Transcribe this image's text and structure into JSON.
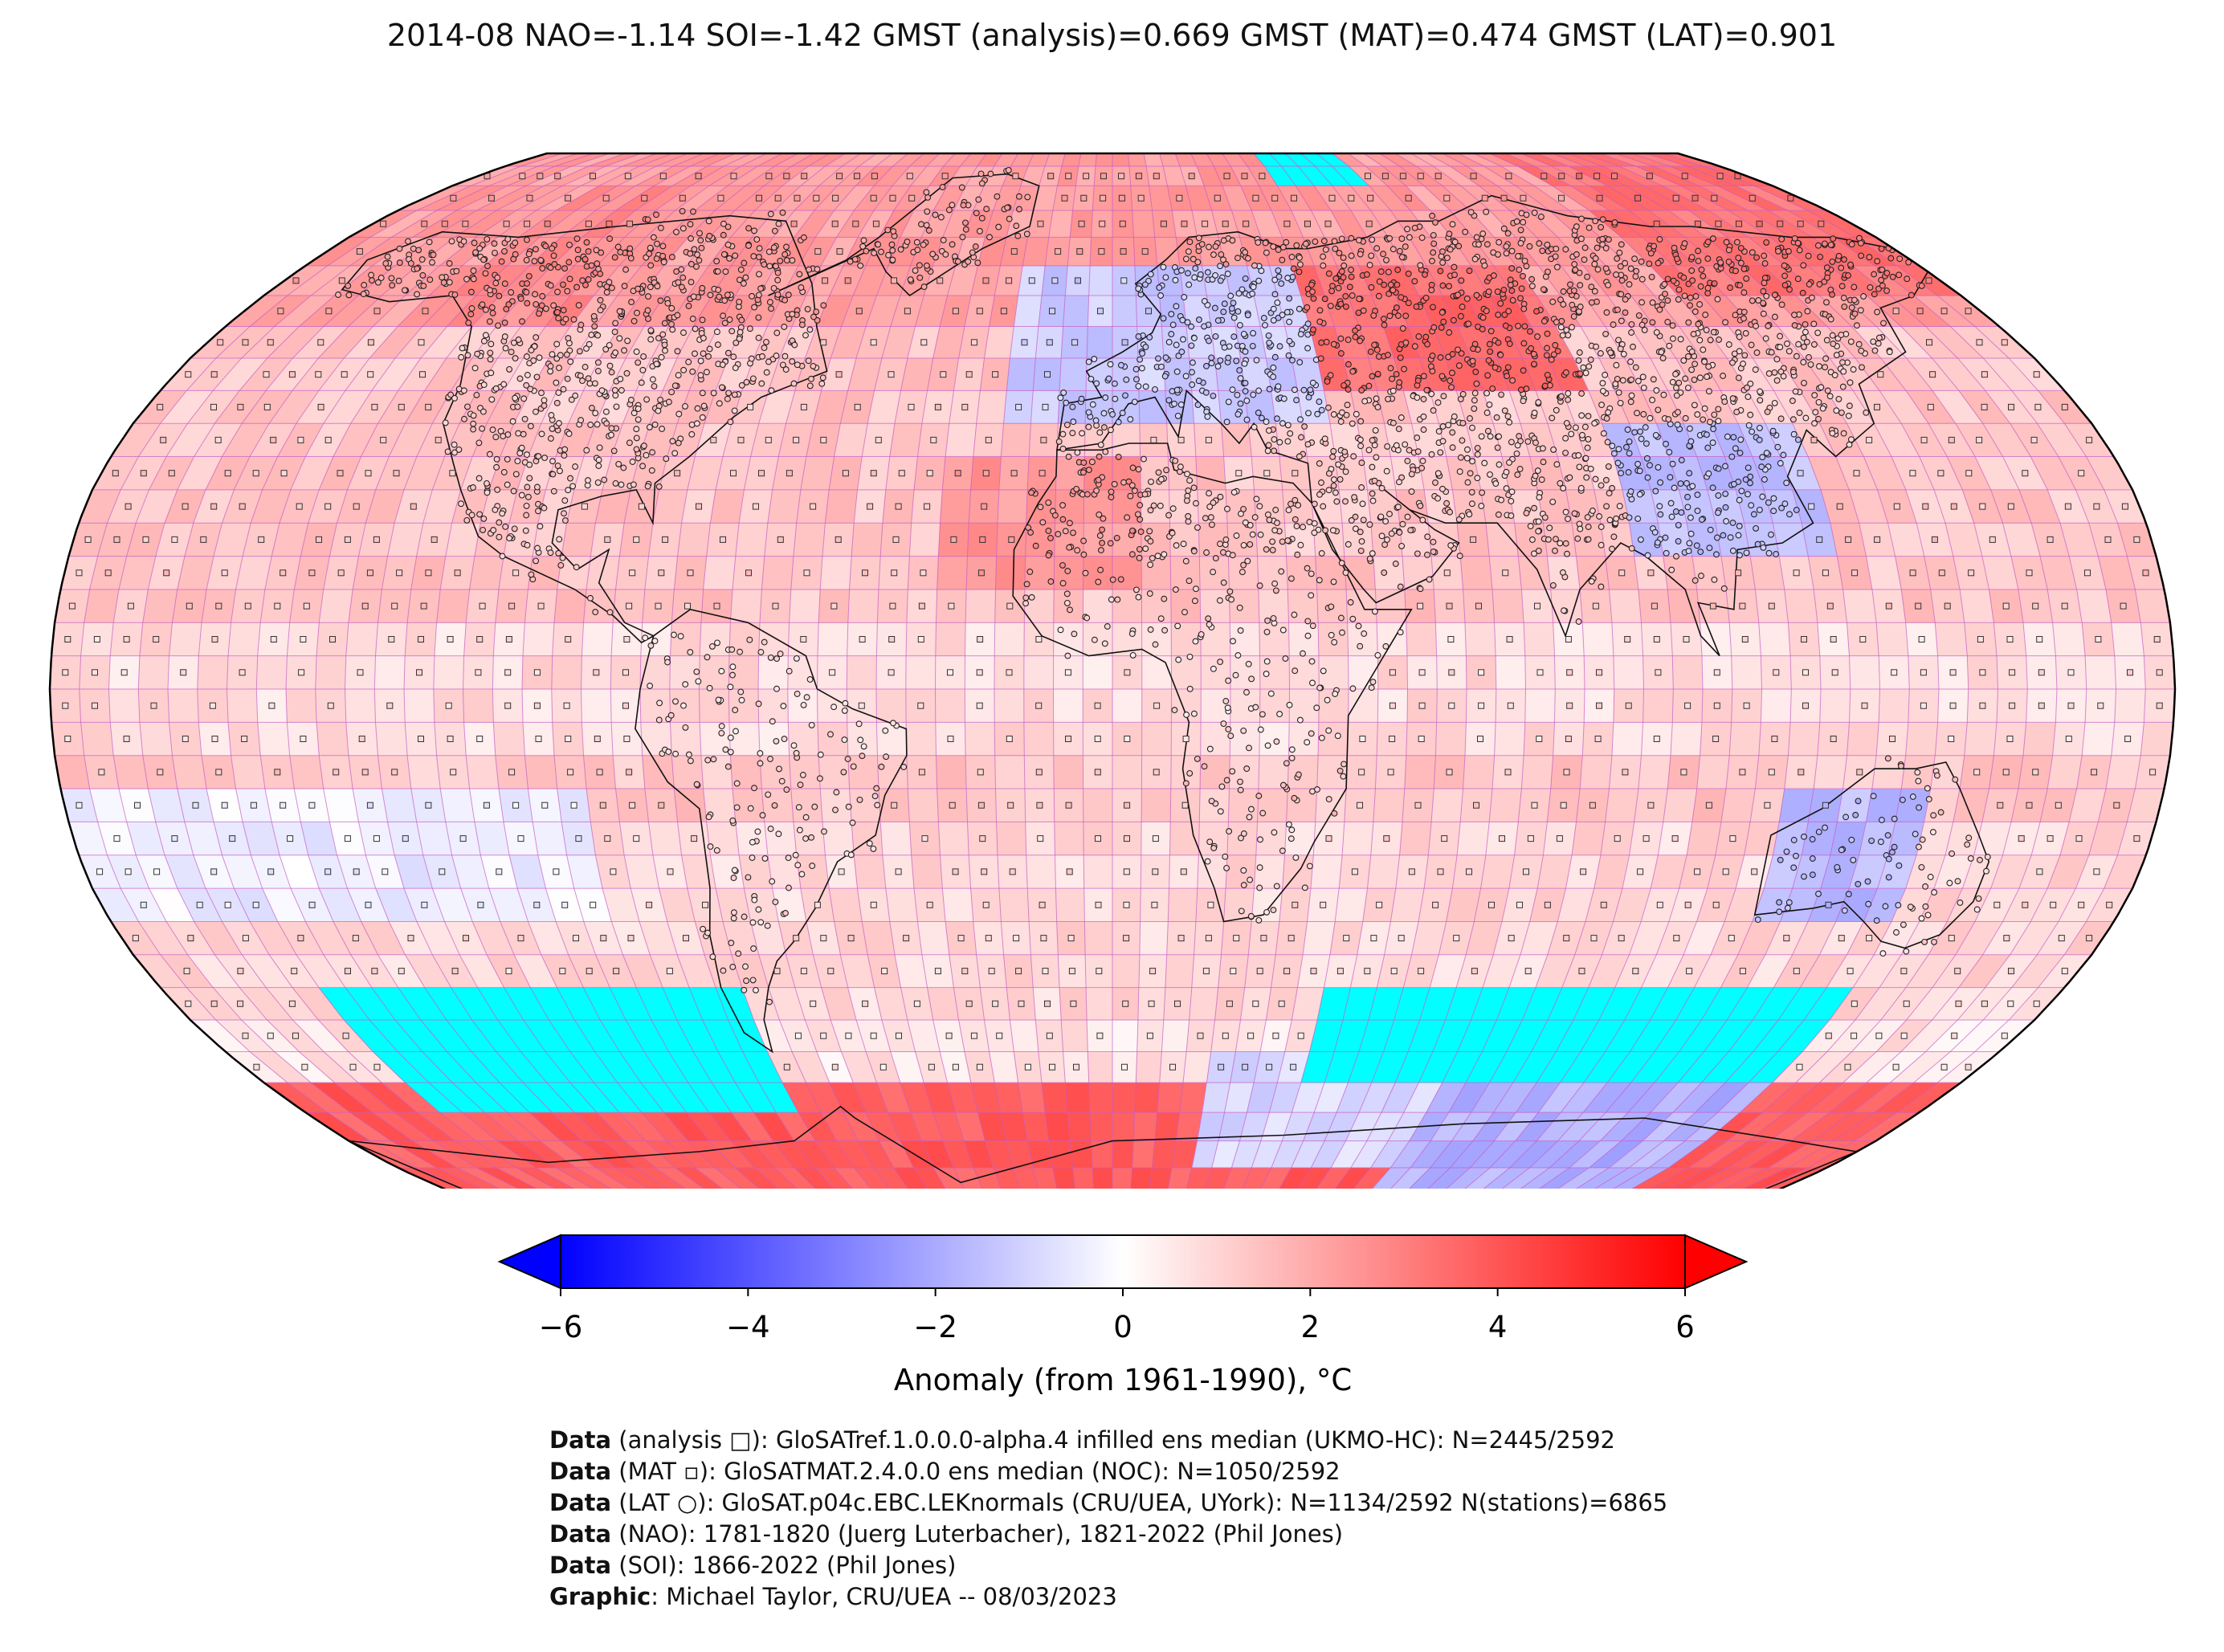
{
  "title": "2014-08 NAO=-1.14 SOI=-1.42 GMST (analysis)=0.669 GMST (MAT)=0.474 GMST (LAT)=0.901",
  "colorbar": {
    "ticks": [
      "−6",
      "−4",
      "−2",
      "0",
      "2",
      "4",
      "6"
    ],
    "tick_values": [
      -6,
      -4,
      -2,
      0,
      2,
      4,
      6
    ],
    "label": "Anomaly (from 1961-1990), °C",
    "vmin": -6,
    "vmax": 6,
    "cmap": "bwr",
    "extend": "both",
    "colors": {
      "low": "#0000ff",
      "mid": "#ffffff",
      "high": "#ff0000"
    }
  },
  "map": {
    "projection": "Robinson",
    "grid": "5° lat × 5° lon anomaly cells",
    "grid_line_color": "#c45ec4",
    "missing_color": "#00ffff",
    "markers": {
      "analysis": "square",
      "MAT": "small square",
      "LAT": "circle"
    }
  },
  "credits": [
    {
      "bold": "Data",
      "text": " (analysis □): GloSATref.1.0.0.0-alpha.4 infilled ens median (UKMO-HC): N=2445/2592"
    },
    {
      "bold": "Data",
      "text": " (MAT ▫): GloSATMAT.2.4.0.0 ens median (NOC): N=1050/2592"
    },
    {
      "bold": "Data",
      "text": " (LAT ○): GloSAT.p04c.EBC.LEKnormals (CRU/UEA, UYork): N=1134/2592 N(stations)=6865"
    },
    {
      "bold": "Data",
      "text": " (NAO): 1781-1820 (Juerg Luterbacher), 1821-2022 (Phil Jones)"
    },
    {
      "bold": "Data",
      "text": " (SOI): 1866-2022 (Phil Jones)"
    },
    {
      "bold": "Graphic",
      "text": ": Michael Taylor, CRU/UEA -- 08/03/2023"
    }
  ]
}
